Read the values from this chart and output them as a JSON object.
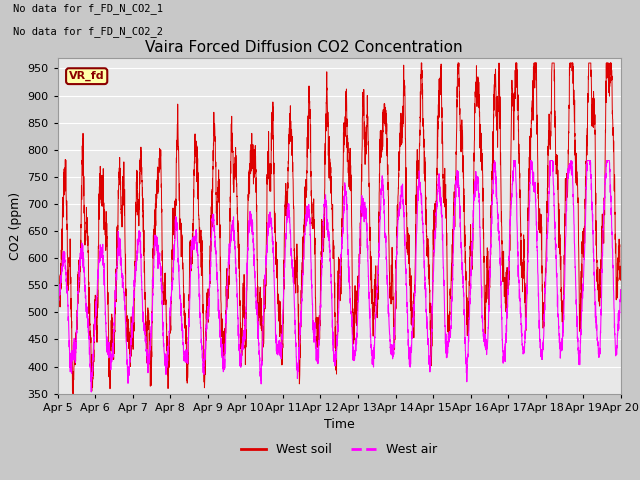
{
  "title": "Vaira Forced Diffusion CO2 Concentration",
  "xlabel": "Time",
  "ylabel": "CO2 (ppm)",
  "ylim": [
    350,
    970
  ],
  "yticks": [
    350,
    400,
    450,
    500,
    550,
    600,
    650,
    700,
    750,
    800,
    850,
    900,
    950
  ],
  "annotations": [
    "No data for f_FD_N_CO2_1",
    "No data for f_FD_N_CO2_2"
  ],
  "legend_labels": [
    "West soil",
    "West air"
  ],
  "vr_fd_label": "VR_fd",
  "soil_color": "#dd0000",
  "air_color": "#ff00ff",
  "bg_color": "#e8e8e8",
  "grid_color": "#ffffff",
  "title_fontsize": 11,
  "label_fontsize": 9,
  "tick_fontsize": 8,
  "annot_fontsize": 7.5
}
